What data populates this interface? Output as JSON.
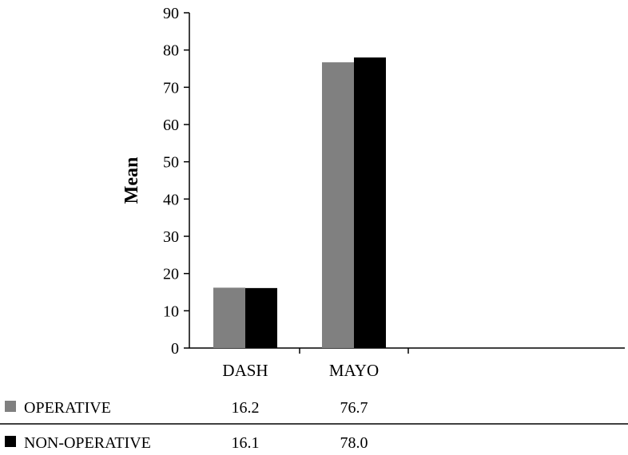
{
  "chart_data": {
    "type": "bar",
    "categories": [
      "DASH",
      "MAYO"
    ],
    "series": [
      {
        "name": "OPERATIVE",
        "values": [
          16.2,
          76.7
        ],
        "color": "#808080"
      },
      {
        "name": "NON-OPERATIVE",
        "values": [
          16.1,
          78.0
        ],
        "color": "#000000"
      }
    ],
    "title": "",
    "xlabel": "",
    "ylabel": "Mean",
    "ylim": [
      0,
      90
    ],
    "yticks": [
      0,
      10,
      20,
      30,
      40,
      50,
      60,
      70,
      80,
      90
    ],
    "grid": false,
    "legend": "data table below chart",
    "table": {
      "rows": [
        {
          "label": "OPERATIVE",
          "values": [
            "16.2",
            "76.7"
          ]
        },
        {
          "label": "NON-OPERATIVE",
          "values": [
            "16.1",
            "78.0"
          ]
        }
      ]
    }
  }
}
